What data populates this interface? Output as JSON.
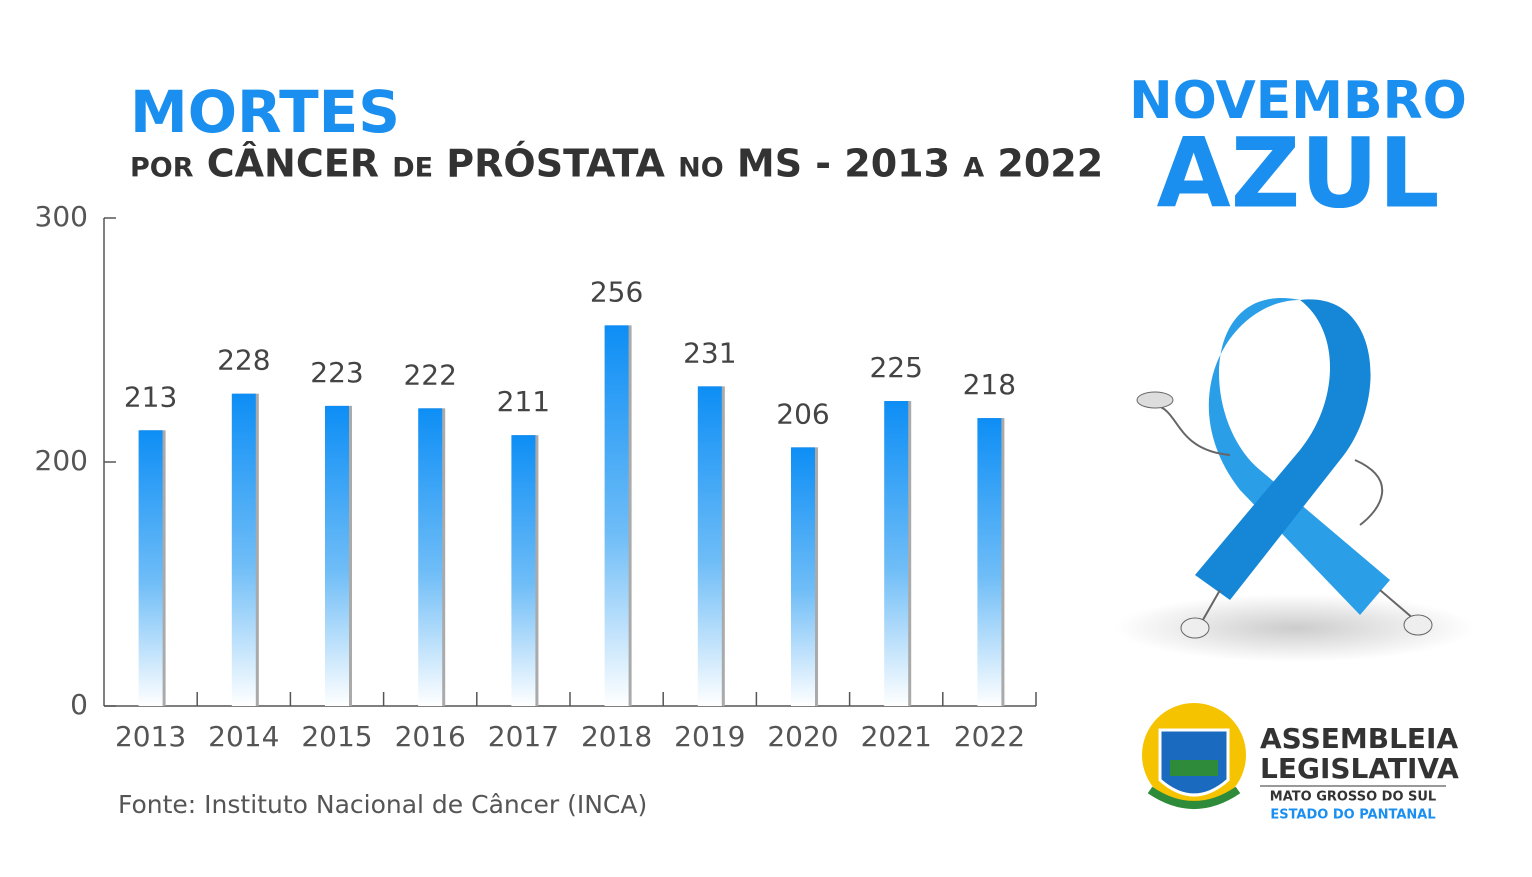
{
  "chart_data": {
    "type": "bar",
    "title": "MORTES",
    "subtitle": "por CÂNCER de PRÓSTATA no MS - 2013 a 2022",
    "categories": [
      "2013",
      "2014",
      "2015",
      "2016",
      "2017",
      "2018",
      "2019",
      "2020",
      "2021",
      "2022"
    ],
    "values": [
      213,
      228,
      223,
      222,
      211,
      256,
      231,
      206,
      225,
      218
    ],
    "color": "#0d8ef5",
    "ylim": [
      0,
      300
    ],
    "yticks": [
      0,
      200,
      300
    ],
    "source": "Fonte: Instituto Nacional de Câncer (INCA)"
  },
  "campaign": {
    "line1": "NOVEMBRO",
    "line2": "AZUL"
  },
  "logo": {
    "line1": "ASSEMBLEIA",
    "line2": "LEGISLATIVA",
    "line3": "MATO GROSSO DO SUL",
    "line4": "ESTADO DO PANTANAL"
  }
}
